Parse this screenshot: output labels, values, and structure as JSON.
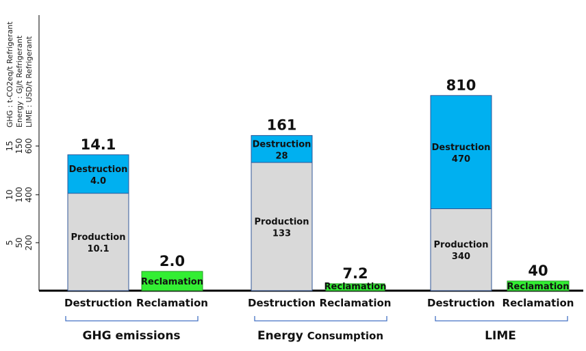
{
  "colors": {
    "production": "#d9d9d9",
    "destruction": "#00b0f0",
    "reclamation": "#33ee33",
    "bar_outline": "#2f5597",
    "reclamation_outline": "#2a9a2a",
    "brace": "#4472c4",
    "axis": "#000000"
  },
  "chart_data": {
    "type": "bar",
    "stacked": true,
    "axis_titles": [
      "GHG : t-CO2eq/t Refrigerant",
      "Energy : GJ/t Refrigerant",
      "LIME : USD/t Refrigerant"
    ],
    "y_axes": [
      {
        "name": "GHG",
        "ticks": [
          "5",
          "10",
          "15"
        ],
        "tick_values": [
          5,
          10,
          15
        ]
      },
      {
        "name": "Energy",
        "ticks": [
          "50",
          "100",
          "150"
        ],
        "tick_values": [
          50,
          100,
          150
        ]
      },
      {
        "name": "LIME",
        "ticks": [
          "200",
          "400",
          "600"
        ],
        "tick_values": [
          200,
          400,
          600
        ]
      }
    ],
    "legend": "none",
    "grid": false,
    "groups": [
      {
        "title": "GHG emissions",
        "title_parts": [
          {
            "text": "GHG emissions",
            "small": false
          }
        ],
        "axis_index": 0,
        "bars": [
          {
            "category": "Destruction",
            "total_label": "14.1",
            "total": 14.1,
            "segments": [
              {
                "name": "Production",
                "label_name": "Production",
                "label_value": "10.1",
                "value": 10.1
              },
              {
                "name": "Destruction",
                "label_name": "Destruction",
                "label_value": "4.0",
                "value": 4.0
              }
            ]
          },
          {
            "category": "Reclamation",
            "total_label": "2.0",
            "total": 2.0,
            "segments": [
              {
                "name": "Reclamation",
                "label_name": "Reclamation",
                "label_value": "",
                "value": 2.0
              }
            ]
          }
        ]
      },
      {
        "title": "Energy Consumption",
        "title_parts": [
          {
            "text": "Energy ",
            "small": false
          },
          {
            "text": "Consumption",
            "small": true
          }
        ],
        "axis_index": 1,
        "bars": [
          {
            "category": "Destruction",
            "total_label": "161",
            "total": 161,
            "segments": [
              {
                "name": "Production",
                "label_name": "Production",
                "label_value": "133",
                "value": 133
              },
              {
                "name": "Destruction",
                "label_name": "Destruction",
                "label_value": "28",
                "value": 28
              }
            ]
          },
          {
            "category": "Reclamation",
            "total_label": "7.2",
            "total": 7.2,
            "segments": [
              {
                "name": "Reclamation",
                "label_name": "Reclamation",
                "label_value": "",
                "value": 7.2
              }
            ]
          }
        ]
      },
      {
        "title": "LIME",
        "title_parts": [
          {
            "text": "LIME",
            "small": false
          }
        ],
        "axis_index": 2,
        "bars": [
          {
            "category": "Destruction",
            "total_label": "810",
            "total": 810,
            "segments": [
              {
                "name": "Production",
                "label_name": "Production",
                "label_value": "340",
                "value": 340
              },
              {
                "name": "Destruction",
                "label_name": "Destruction",
                "label_value": "470",
                "value": 470
              }
            ]
          },
          {
            "category": "Reclamation",
            "total_label": "40",
            "total": 40,
            "segments": [
              {
                "name": "Reclamation",
                "label_name": "Reclamation",
                "label_value": "",
                "value": 40
              }
            ]
          }
        ]
      }
    ]
  }
}
